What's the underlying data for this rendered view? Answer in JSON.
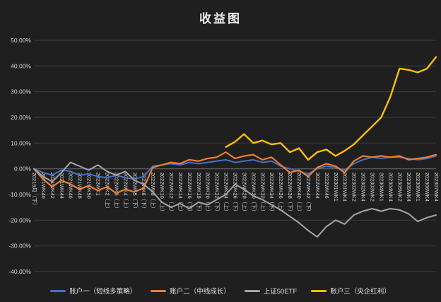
{
  "title": "收益图",
  "chart_data": {
    "type": "line",
    "title": "收益图",
    "ylim": [
      -40,
      50
    ],
    "ytick_step": 10,
    "ytick_format": "0.00%",
    "grid": true,
    "legend_position": "bottom",
    "background": "#1f1f1f",
    "gridline_color": "#3d3d3d",
    "zero_line_color": "#6e6e6e",
    "axis_label_color": "#d6d6d6",
    "categories": [
      "20219月（下）",
      "2021WK40",
      "2021WK42",
      "2021WK44",
      "2021WK46",
      "2021WK48",
      "2021WK50",
      "2022WK1",
      "2022WK2（上）",
      "2022WK3（上）",
      "2022WK4（上）",
      "2022WK5（下）",
      "2022WK6（下）",
      "2022WK8（上）",
      "2022WK10（上）",
      "2022WK12（上）",
      "2022WK14（上）",
      "2022WK16（下）",
      "2022WK18（下）",
      "2022WK20（上）",
      "2022WK22（下）",
      "2022WK24（上）",
      "2022WK26（下）",
      "2022WK28（上）",
      "2022WK30（下）",
      "2022WK32（上）",
      "2022WK34（下）",
      "2022WK36（上）",
      "2022WK38（下）",
      "2022WK40（上）",
      "2022WK42（下）",
      "2022WK44",
      "2022WK46",
      "202301WK1",
      "202301WK4",
      "202302WK2",
      "202302WK4",
      "202303WK2",
      "202304WK1",
      "202304WK4",
      "202305WK2",
      "202305WK4",
      "202306WK1",
      "202306WK4",
      "202307WK4"
    ],
    "series": [
      {
        "name": "账户一（短线多策略）",
        "color": "#4472C4",
        "width": 2,
        "values": [
          0,
          -1.5,
          -2.5,
          -0.5,
          -1,
          -2.5,
          -2,
          -3,
          -3.5,
          -2.5,
          -3.5,
          -4,
          -3,
          1,
          1.5,
          2,
          1.5,
          2.5,
          2,
          2.5,
          3,
          3.5,
          2.5,
          3,
          3.5,
          2.5,
          3,
          1,
          0,
          -1,
          -2,
          0,
          1,
          0.5,
          -0.5,
          2,
          3.5,
          4.5,
          4,
          4.5,
          4.5,
          4,
          3.5,
          4,
          5
        ]
      },
      {
        "name": "账户二（中线成长）",
        "color": "#ED7D31",
        "width": 2.2,
        "values": [
          0,
          -4,
          -7,
          -4.5,
          -6,
          -8,
          -6.5,
          -8.5,
          -7,
          -9.5,
          -8,
          -9,
          -7.5,
          0.5,
          1.5,
          2.5,
          2,
          3.5,
          3,
          4,
          4.5,
          6.5,
          4,
          5,
          5.5,
          3.5,
          4.5,
          1.5,
          -1.5,
          -0.5,
          -3,
          0.5,
          2,
          1,
          -1.5,
          3,
          5,
          4.5,
          5,
          4.5,
          5,
          3.5,
          4,
          4.5,
          5.5
        ]
      },
      {
        "name": "上证50ETF",
        "color": "#A5A5A5",
        "width": 2,
        "values": [
          0,
          -3,
          -5,
          -1.5,
          2.5,
          1,
          -0.5,
          1.5,
          -1,
          -2.5,
          -1,
          -4.5,
          -6,
          -9,
          -13,
          -15,
          -13.5,
          -15.5,
          -13,
          -14,
          -12,
          -10,
          -6,
          -8,
          -10.5,
          -12,
          -14,
          -16,
          -18.5,
          -21,
          -24,
          -26.5,
          -22.5,
          -20,
          -21.5,
          -18,
          -16.5,
          -15.5,
          -16.5,
          -15.5,
          -16,
          -17.5,
          -20.5,
          -19,
          -18
        ]
      },
      {
        "name": "账户三（央企红利）",
        "color": "#FFC000",
        "width": 2.4,
        "values": [
          null,
          null,
          null,
          null,
          null,
          null,
          null,
          null,
          null,
          null,
          null,
          null,
          null,
          null,
          null,
          null,
          null,
          null,
          null,
          null,
          null,
          8.5,
          10.5,
          13.5,
          10,
          11,
          9.5,
          10,
          6.5,
          8,
          3.5,
          6.5,
          7.5,
          5,
          7,
          9.5,
          13,
          16.5,
          20,
          28,
          39,
          38.5,
          37.5,
          39,
          43.5
        ]
      }
    ]
  },
  "legend": {
    "items": [
      "账户一（短线多策略）",
      "账户二（中线成长）",
      "上证50ETF",
      "账户三（央企红利）"
    ]
  },
  "y_axis": {
    "tick_labels": [
      "50.00%",
      "40.00%",
      "30.00%",
      "20.00%",
      "10.00%",
      "0.00%",
      "-10.00%",
      "-20.00%",
      "-30.00%",
      "-40.00%"
    ]
  }
}
